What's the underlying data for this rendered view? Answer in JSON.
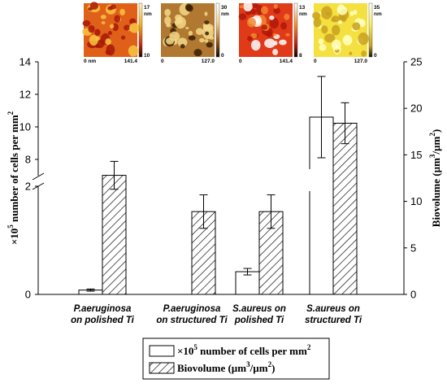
{
  "chart_data": {
    "type": "bar",
    "categories": [
      [
        "P.aeruginosa",
        "on polished Ti"
      ],
      [
        "P.aeruginosa",
        "on structured Ti"
      ],
      [
        "S.aureus on",
        "polished Ti"
      ],
      [
        "S.aureus  on",
        "structured Ti"
      ]
    ],
    "left_axis": {
      "title": "number of cells per mm",
      "title_prefix": "×10",
      "title_exp_5": "5",
      "title_exp_2": "2",
      "scale": "broken",
      "lower_segment": {
        "range": [
          0,
          2
        ],
        "ticks": [
          "0",
          "2"
        ]
      },
      "upper_segment": {
        "range": [
          7,
          14
        ],
        "ticks": [
          "8",
          "10",
          "12",
          "14"
        ]
      }
    },
    "right_axis": {
      "title_pre": "Biovolume (µm",
      "title_mid": "/µm",
      "title_end": ")",
      "sup": "3",
      "sup2": "2",
      "range": [
        0,
        25
      ],
      "ticks": [
        "0",
        "5",
        "10",
        "15",
        "20",
        "25"
      ]
    },
    "series": [
      {
        "name": "number of cells per mm",
        "axis": "left",
        "fill": "#ffffff",
        "values": [
          0.08,
          0.0,
          0.42,
          10.6
        ],
        "errors": [
          0.02,
          0.0,
          0.06,
          2.5
        ]
      },
      {
        "name": "Biovolume (µm3/µm2)",
        "axis": "right",
        "fill": "hatched",
        "values": [
          12.8,
          8.9,
          8.9,
          18.4
        ],
        "errors": [
          1.5,
          1.8,
          1.8,
          2.2
        ]
      }
    ],
    "legend": {
      "position": "bottom",
      "entries": [
        {
          "prefix": "×10",
          "sup": "5",
          "text": " number of cells per mm",
          "sup2": "2"
        },
        {
          "text": "Biovolume (µm",
          "sup": "3",
          "mid": "/µm",
          "sup2": "2",
          "end": ")"
        }
      ]
    },
    "insets": [
      {
        "colormap": "red-yellow",
        "xlabel_left": "0",
        "xlabel_left_unit": "nm",
        "xlabel_right": "141.4",
        "scale_top": "17",
        "scale_unit": "nm",
        "scale_bottom": "10"
      },
      {
        "colormap": "brown-pillars",
        "xlabel_left": "0",
        "xlabel_right": "127.0",
        "scale_top": "30",
        "scale_unit": "nm",
        "scale_bottom": "0"
      },
      {
        "colormap": "red-white",
        "xlabel_left": "0",
        "xlabel_right": "141.4",
        "scale_top": "13",
        "scale_unit": "nm",
        "scale_bottom": "8"
      },
      {
        "colormap": "yellow-white",
        "xlabel_left": "0",
        "xlabel_right": "127.0",
        "scale_top": "35",
        "scale_unit": "nm",
        "scale_bottom": "0"
      }
    ]
  }
}
